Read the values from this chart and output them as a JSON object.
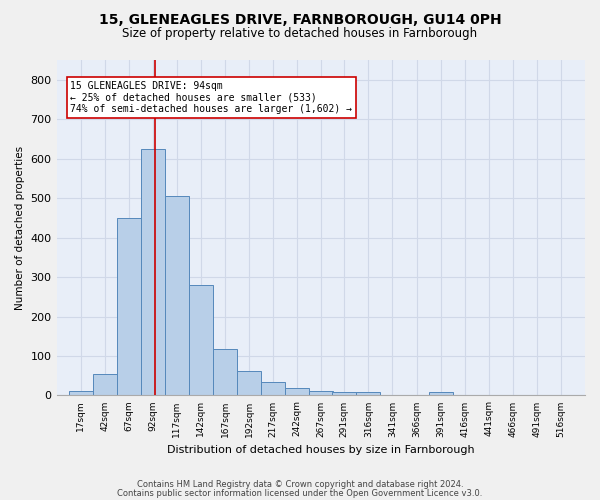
{
  "title": "15, GLENEAGLES DRIVE, FARNBOROUGH, GU14 0PH",
  "subtitle": "Size of property relative to detached houses in Farnborough",
  "xlabel": "Distribution of detached houses by size in Farnborough",
  "ylabel": "Number of detached properties",
  "bar_values": [
    12,
    55,
    450,
    625,
    505,
    280,
    118,
    63,
    35,
    20,
    10,
    8,
    8,
    0,
    0,
    8,
    0,
    0,
    0,
    0,
    0
  ],
  "bin_labels": [
    "17sqm",
    "42sqm",
    "67sqm",
    "92sqm",
    "117sqm",
    "142sqm",
    "167sqm",
    "192sqm",
    "217sqm",
    "242sqm",
    "267sqm",
    "291sqm",
    "316sqm",
    "341sqm",
    "366sqm",
    "391sqm",
    "416sqm",
    "441sqm",
    "466sqm",
    "491sqm",
    "516sqm"
  ],
  "bin_centers": [
    17,
    42,
    67,
    92,
    117,
    142,
    167,
    192,
    217,
    242,
    267,
    291,
    316,
    341,
    366,
    391,
    416,
    441,
    466,
    491,
    516
  ],
  "bin_width": 25,
  "bar_color": "#b8cfe8",
  "bar_edge_color": "#5588bb",
  "grid_color": "#d0d8e8",
  "bg_color": "#e8eef8",
  "fig_bg_color": "#f0f0f0",
  "red_line_x": 94,
  "annotation_line1": "15 GLENEAGLES DRIVE: 94sqm",
  "annotation_line2": "← 25% of detached houses are smaller (533)",
  "annotation_line3": "74% of semi-detached houses are larger (1,602) →",
  "annotation_box_color": "#ffffff",
  "annotation_border_color": "#cc0000",
  "ylim": [
    0,
    850
  ],
  "yticks": [
    0,
    100,
    200,
    300,
    400,
    500,
    600,
    700,
    800
  ],
  "footer1": "Contains HM Land Registry data © Crown copyright and database right 2024.",
  "footer2": "Contains public sector information licensed under the Open Government Licence v3.0."
}
